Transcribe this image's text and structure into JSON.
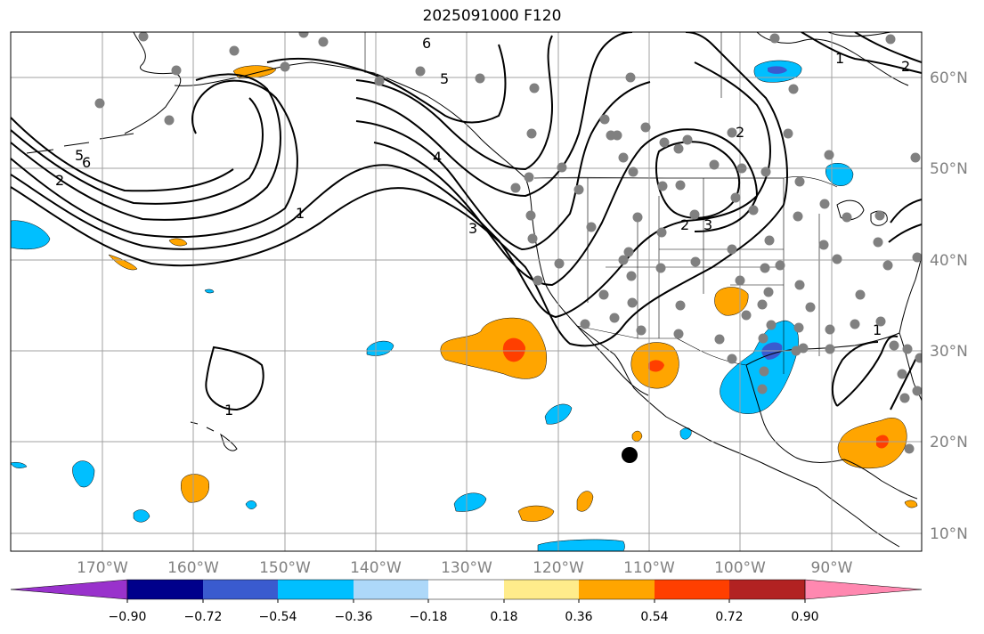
{
  "title": "2025091000 F120",
  "axes": {
    "lon_labels": [
      "170°W",
      "160°W",
      "150°W",
      "140°W",
      "130°W",
      "120°W",
      "110°W",
      "100°W",
      "90°W"
    ],
    "lat_labels": [
      "60°N",
      "50°N",
      "40°N",
      "30°N",
      "20°N",
      "10°N"
    ]
  },
  "contour_labels": [
    "1",
    "1",
    "1",
    "2",
    "2",
    "3",
    "3",
    "4",
    "5",
    "6",
    "6",
    "5",
    "1",
    "2",
    "2"
  ],
  "colorbar": {
    "ticks": [
      "−0.90",
      "−0.72",
      "−0.54",
      "−0.36",
      "−0.18",
      "0.18",
      "0.36",
      "0.54",
      "0.72",
      "0.90"
    ],
    "colors": [
      "#9932cc",
      "#00008b",
      "#3a5bcf",
      "#00bfff",
      "#add8f9",
      "#ffffff",
      "#ffec8b",
      "#ffa500",
      "#ff3f00",
      "#b22222",
      "#ff88b0"
    ]
  },
  "legend_colors": {
    "contour": "#000000",
    "stations": "#808080",
    "grid": "#a0a0a0",
    "marker": "#000000"
  }
}
